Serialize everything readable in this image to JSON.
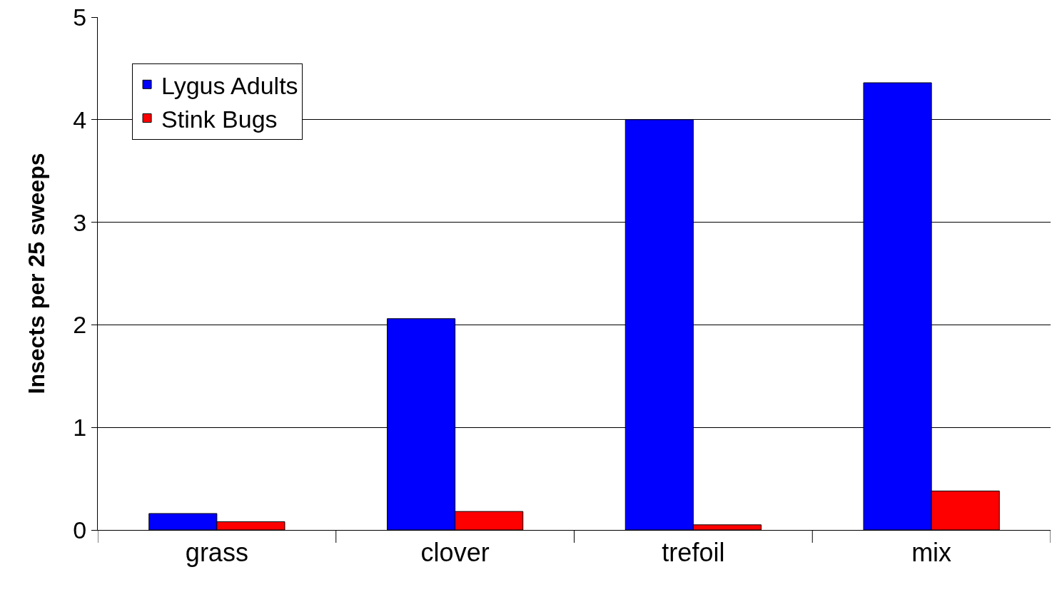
{
  "chart_data": {
    "type": "bar",
    "ylabel": "Insects per 25 sweeps",
    "categories": [
      "grass",
      "clover",
      "trefoil",
      "mix"
    ],
    "series": [
      {
        "name": "Lygus Adults",
        "color": "#0000ff",
        "values": [
          0.16,
          2.06,
          4.0,
          4.36
        ]
      },
      {
        "name": "Stink Bugs",
        "color": "#ff0000",
        "values": [
          0.08,
          0.18,
          0.05,
          0.38
        ]
      }
    ],
    "ylim": [
      0,
      5
    ],
    "yticks": [
      0,
      1,
      2,
      3,
      4,
      5
    ],
    "grid": "y",
    "legend": "top left"
  }
}
